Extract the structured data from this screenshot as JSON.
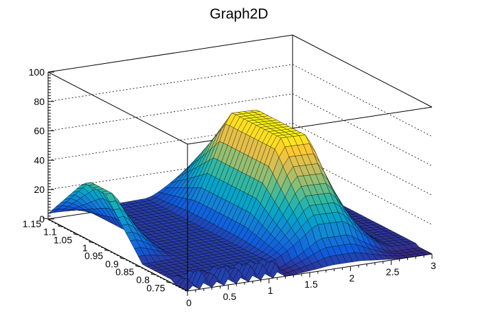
{
  "chart_data": {
    "type": "surface3d",
    "title": "Graph2D",
    "xlabel": "",
    "ylabel": "",
    "zlabel": "",
    "x_range": [
      0,
      3
    ],
    "y_range": [
      0.7,
      1.15
    ],
    "z_range": [
      0,
      100
    ],
    "x_ticks": [
      "0",
      "0.5",
      "1",
      "1.5",
      "2",
      "2.5",
      "3"
    ],
    "y_ticks": [
      "0.75",
      "0.8",
      "0.85",
      "0.9",
      "0.95",
      "1",
      "1.05",
      "1.1",
      "1.15"
    ],
    "z_ticks": [
      "0",
      "20",
      "40",
      "60",
      "80",
      "100"
    ],
    "palette": "viridis-like",
    "colors": [
      "#352a87",
      "#0f5cdd",
      "#1481d6",
      "#06a4ca",
      "#2eb7a4",
      "#87bf77",
      "#d1bb59",
      "#fec832",
      "#f9fb0e"
    ],
    "grid": true,
    "features": [
      {
        "name": "peak",
        "x": 1.95,
        "y": 0.95,
        "z": 67
      },
      {
        "name": "ridge",
        "x": 0.05,
        "y": 1.0,
        "z": 35
      },
      {
        "name": "spikes",
        "x_range": [
          0.05,
          1.2
        ],
        "y": 0.72,
        "z_max": 22
      }
    ]
  }
}
